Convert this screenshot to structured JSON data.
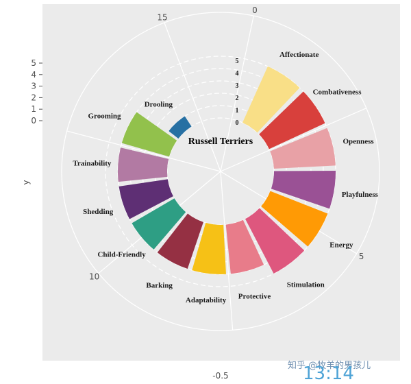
{
  "chart_data": {
    "type": "bar",
    "coord": "polar",
    "center_title": "Russell Terriers",
    "categories": [
      "Affectionate",
      "Combativeness",
      "Openness",
      "Playfulness",
      "Energy",
      "Stimulation",
      "Protective",
      "Adaptability",
      "Barking",
      "Child-Friendly",
      "Shedding",
      "Trainability",
      "Grooming",
      "Drooling"
    ],
    "values": [
      5,
      5,
      5,
      5,
      5,
      5,
      4,
      4,
      4,
      4,
      4,
      4,
      4,
      1
    ],
    "colors": [
      "#f9df87",
      "#d8403c",
      "#e8a1a6",
      "#9a5195",
      "#ff9a05",
      "#de577e",
      "#e87c8a",
      "#f6c116",
      "#953043",
      "#2e9e84",
      "#5e2f74",
      "#b27aa3",
      "#92c14c",
      "#2770a3"
    ],
    "ring_labels": [
      "0",
      "1",
      "2",
      "3",
      "4",
      "5"
    ],
    "y_ticks": [
      "0",
      "1",
      "2",
      "3",
      "4",
      "5"
    ],
    "theta_ticks": [
      "0",
      "5",
      "10",
      "15"
    ],
    "ylabel": "y",
    "xlabel": "-0.5",
    "ylim": [
      0,
      5
    ],
    "panel_background": "#ebebeb",
    "grid": true
  },
  "watermark": {
    "text": "知乎 @牧羊的男孩儿",
    "time": "13:14"
  }
}
